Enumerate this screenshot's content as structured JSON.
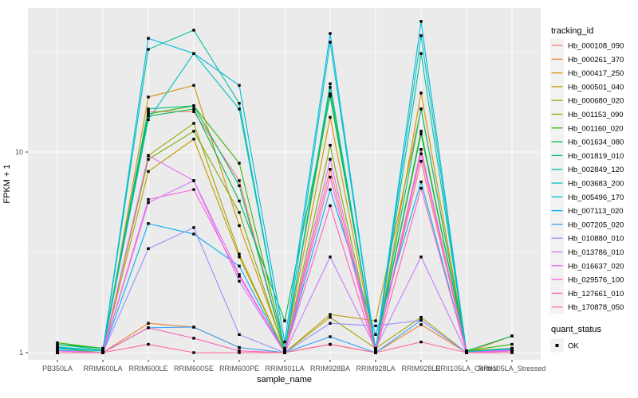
{
  "figure": {
    "y_axis": {
      "label": "FPKM + 1",
      "tick_labels": [
        "1",
        "10"
      ],
      "tick_values": [
        1,
        10
      ]
    },
    "x_axis": {
      "label": "sample_name"
    },
    "legend": {
      "tracking_title": "tracking_id",
      "quant_title": "quant_status",
      "quant_ok_label": "OK"
    },
    "colors": {
      "panel_bg": "#EBEBEB",
      "grid": "#FFFFFF",
      "tick_text": "#4D4D4D",
      "point": "#000000",
      "legend_key_bg": "#F2F2F2"
    }
  },
  "chart_data": {
    "type": "line",
    "title": "",
    "xlabel": "sample_name",
    "ylabel": "FPKM + 1",
    "y_scale": "log10",
    "ylim": [
      1,
      52
    ],
    "y_major_ticks": [
      1,
      10
    ],
    "y_minor_ticks": [
      3.162,
      31.623
    ],
    "grid": true,
    "legend_position": "right",
    "point_shape": "filled-square-black",
    "quant_status_values": [
      "OK"
    ],
    "categories": [
      "PB350LA",
      "RRIM600LA",
      "RRIM600LE",
      "RRIM600SE",
      "RRIM600PE",
      "RRIM901LA",
      "RRIM928BA",
      "RRIM928LA",
      "RRIM928LE",
      "RRII105LA_Control",
      "RRII105LA_Stressed"
    ],
    "series": [
      {
        "name": "Hb_000108_090",
        "color": "#F8766D",
        "values": [
          1.05,
          1.02,
          15.9,
          15.9,
          7.2,
          1.02,
          8.2,
          1.02,
          9.0,
          1.01,
          1.03
        ]
      },
      {
        "name": "Hb_000261_370",
        "color": "#EA8331",
        "values": [
          1.0,
          1.0,
          1.4,
          1.34,
          1.06,
          1.0,
          1.1,
          1.0,
          1.38,
          1.0,
          1.21
        ]
      },
      {
        "name": "Hb_000417_250",
        "color": "#D89000",
        "values": [
          1.02,
          1.0,
          18.8,
          21.5,
          4.3,
          1.03,
          14.9,
          1.03,
          19.7,
          1.02,
          1.05
        ]
      },
      {
        "name": "Hb_000501_040",
        "color": "#C09B00",
        "values": [
          1.0,
          1.0,
          8.0,
          11.6,
          3.0,
          1.0,
          1.55,
          1.44,
          16.4,
          1.02,
          1.05
        ]
      },
      {
        "name": "Hb_000680_020",
        "color": "#A3A500",
        "values": [
          1.0,
          1.0,
          9.6,
          13.9,
          3.1,
          1.0,
          1.5,
          1.05,
          1.5,
          1.0,
          1.02
        ]
      },
      {
        "name": "Hb_001153_090",
        "color": "#7CAE00",
        "values": [
          1.05,
          1.0,
          9.2,
          12.7,
          5.0,
          1.0,
          10.8,
          1.0,
          10.3,
          1.0,
          1.05
        ]
      },
      {
        "name": "Hb_001160_020",
        "color": "#39B600",
        "values": [
          1.12,
          1.05,
          15.5,
          17.0,
          8.8,
          1.05,
          19.5,
          1.05,
          12.7,
          1.02,
          1.1
        ]
      },
      {
        "name": "Hb_001634_080",
        "color": "#00BB4E",
        "values": [
          1.1,
          1.05,
          15.1,
          16.4,
          5.7,
          1.44,
          19.0,
          1.05,
          12.3,
          1.02,
          1.21
        ]
      },
      {
        "name": "Hb_001819_010",
        "color": "#00BF7D",
        "values": [
          1.1,
          1.03,
          16.4,
          17.0,
          6.8,
          1.02,
          21.0,
          1.03,
          16.4,
          1.01,
          1.05
        ]
      },
      {
        "name": "Hb_002849_120",
        "color": "#00C1A3",
        "values": [
          1.07,
          1.02,
          32.5,
          40.5,
          17.5,
          1.02,
          21.9,
          1.02,
          31.0,
          1.01,
          1.04
        ]
      },
      {
        "name": "Hb_003683_200",
        "color": "#00BFC4",
        "values": [
          1.05,
          1.02,
          14.5,
          31.0,
          16.4,
          1.02,
          35.3,
          1.02,
          38.0,
          1.01,
          1.04
        ]
      },
      {
        "name": "Hb_005496_170",
        "color": "#00BAE0",
        "values": [
          1.06,
          1.02,
          36.9,
          31.0,
          21.5,
          1.13,
          39.0,
          1.02,
          44.8,
          1.01,
          1.04
        ]
      },
      {
        "name": "Hb_007113_020",
        "color": "#00B0F6",
        "values": [
          1.03,
          1.0,
          4.4,
          3.9,
          2.7,
          1.0,
          6.5,
          1.23,
          7.1,
          1.0,
          1.03
        ]
      },
      {
        "name": "Hb_007205_020",
        "color": "#35A2FF",
        "values": [
          1.0,
          1.0,
          1.33,
          1.34,
          1.06,
          1.0,
          1.2,
          1.0,
          1.45,
          1.0,
          1.02
        ]
      },
      {
        "name": "Hb_010880_010",
        "color": "#9590FF",
        "values": [
          1.02,
          1.0,
          3.3,
          4.2,
          1.23,
          1.0,
          1.4,
          1.36,
          1.45,
          1.0,
          1.03
        ]
      },
      {
        "name": "Hb_013786_010",
        "color": "#C77CFF",
        "values": [
          1.0,
          1.0,
          5.6,
          7.2,
          2.27,
          1.0,
          3.0,
          1.05,
          3.0,
          1.0,
          1.02
        ]
      },
      {
        "name": "Hb_016637_020",
        "color": "#E76BF3",
        "values": [
          1.02,
          1.0,
          9.6,
          7.2,
          2.45,
          1.0,
          9.2,
          1.0,
          10.3,
          1.0,
          1.03
        ]
      },
      {
        "name": "Hb_029576_100",
        "color": "#FA62DB",
        "values": [
          1.0,
          1.0,
          5.8,
          6.5,
          2.4,
          1.0,
          7.5,
          1.0,
          9.8,
          1.0,
          1.02
        ]
      },
      {
        "name": "Hb_127661_010",
        "color": "#FF62BC",
        "values": [
          1.0,
          1.0,
          1.33,
          1.18,
          1.02,
          1.0,
          5.4,
          1.0,
          6.6,
          1.0,
          1.0
        ]
      },
      {
        "name": "Hb_170878_050",
        "color": "#FF6A98",
        "values": [
          1.0,
          1.0,
          1.1,
          1.0,
          1.0,
          1.0,
          1.1,
          1.0,
          1.13,
          1.0,
          1.0
        ]
      }
    ]
  }
}
